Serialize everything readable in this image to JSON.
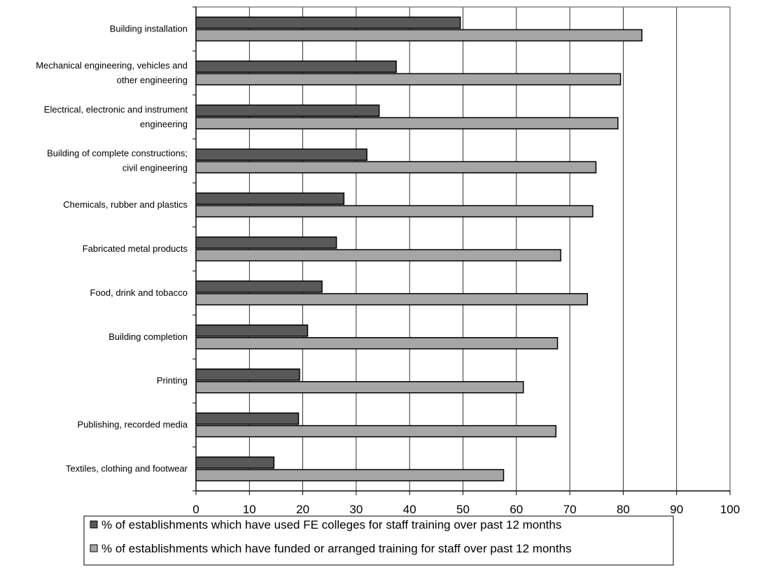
{
  "chart_data": {
    "type": "bar",
    "orientation": "horizontal",
    "title": "",
    "xlabel": "",
    "ylabel": "",
    "xlim": [
      0,
      100
    ],
    "x_ticks": [
      "0",
      "10",
      "20",
      "30",
      "40",
      "50",
      "60",
      "70",
      "80",
      "90",
      "100"
    ],
    "grid": "vertical gridlines at each x tick",
    "legend_position": "bottom",
    "categories": [
      [
        "Building installation"
      ],
      [
        "Mechanical engineering, vehicles and",
        "other engineering"
      ],
      [
        "Electrical, electronic and instrument",
        "engineering"
      ],
      [
        "Building of complete constructions;",
        "civil engineering"
      ],
      [
        "Chemicals, rubber and plastics"
      ],
      [
        "Fabricated metal products"
      ],
      [
        "Food, drink and tobacco"
      ],
      [
        "Building completion"
      ],
      [
        "Printing"
      ],
      [
        "Publishing, recorded media"
      ],
      [
        "Textiles, clothing and footwear"
      ]
    ],
    "series": [
      {
        "name": "% of establishments which have used FE colleges for staff training over past 12 months",
        "color": "#595959",
        "values": [
          49.5,
          37.5,
          34.3,
          32,
          27.7,
          26.3,
          23.6,
          20.9,
          19.4,
          19.2,
          14.6
        ]
      },
      {
        "name": "% of establishments which have funded or arranged training for staff over past 12 months",
        "color": "#a6a6a6",
        "values": [
          83.5,
          79.5,
          79,
          74.9,
          74.3,
          68.3,
          73.3,
          67.7,
          61.3,
          67.4,
          57.6
        ]
      }
    ]
  }
}
